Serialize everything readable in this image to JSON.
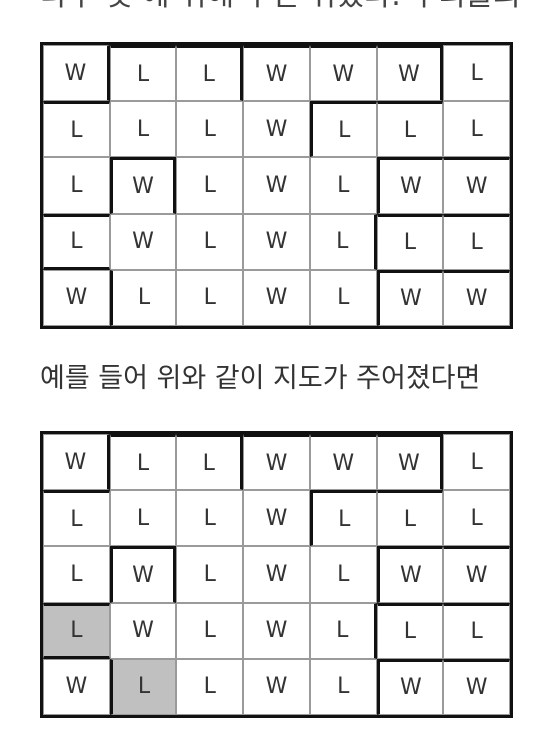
{
  "top_text": "다수 및 에 취해 두면 취했다. 우리들의",
  "caption": "예를 들어 위와 같이 지도가 주어졌다면",
  "highlight_color": "#c0c0c0",
  "grid1": {
    "rows": [
      [
        "W",
        "L",
        "L",
        "W",
        "W",
        "W",
        "L"
      ],
      [
        "L",
        "L",
        "L",
        "W",
        "L",
        "L",
        "L"
      ],
      [
        "L",
        "W",
        "L",
        "W",
        "L",
        "W",
        "W"
      ],
      [
        "L",
        "W",
        "L",
        "W",
        "L",
        "L",
        "L"
      ],
      [
        "W",
        "L",
        "L",
        "W",
        "L",
        "W",
        "W"
      ]
    ],
    "highlighted": []
  },
  "grid2": {
    "rows": [
      [
        "W",
        "L",
        "L",
        "W",
        "W",
        "W",
        "L"
      ],
      [
        "L",
        "L",
        "L",
        "W",
        "L",
        "L",
        "L"
      ],
      [
        "L",
        "W",
        "L",
        "W",
        "L",
        "W",
        "W"
      ],
      [
        "L",
        "W",
        "L",
        "W",
        "L",
        "L",
        "L"
      ],
      [
        "W",
        "L",
        "L",
        "W",
        "L",
        "W",
        "W"
      ]
    ],
    "highlighted": [
      [
        3,
        0
      ],
      [
        4,
        1
      ]
    ]
  }
}
